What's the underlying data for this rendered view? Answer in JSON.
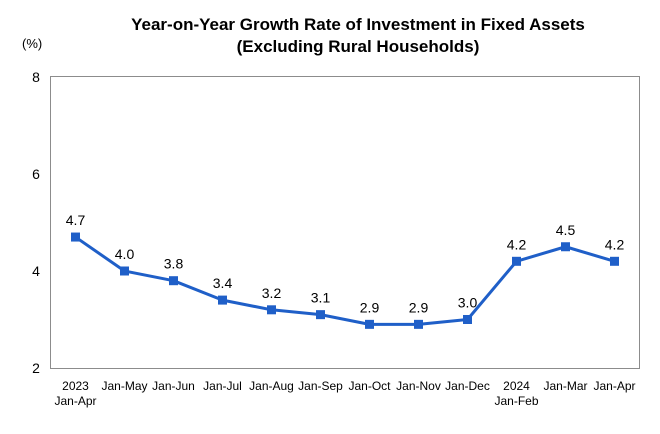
{
  "chart_data": {
    "type": "line",
    "title_lines": [
      "Year-on-Year Growth Rate of Investment in Fixed Assets",
      "(Excluding Rural Households)"
    ],
    "unit": "(%)",
    "xlabel": "",
    "ylabel": "",
    "ylim": [
      2,
      8
    ],
    "yticks": [
      "2",
      "4",
      "6",
      "8"
    ],
    "ytick_values": [
      2,
      4,
      6,
      8
    ],
    "categories": [
      [
        "2023",
        "Jan-Apr"
      ],
      [
        "Jan-May"
      ],
      [
        "Jan-Jun"
      ],
      [
        "Jan-Jul"
      ],
      [
        "Jan-Aug"
      ],
      [
        "Jan-Sep"
      ],
      [
        "Jan-Oct"
      ],
      [
        "Jan-Nov"
      ],
      [
        "Jan-Dec"
      ],
      [
        "2024",
        "Jan-Feb"
      ],
      [
        "Jan-Mar"
      ],
      [
        "Jan-Apr"
      ]
    ],
    "series": [
      {
        "values": [
          4.7,
          4.0,
          3.8,
          3.4,
          3.2,
          3.1,
          2.9,
          2.9,
          3.0,
          4.2,
          4.5,
          4.2
        ],
        "labels": [
          "4.7",
          "4.0",
          "3.8",
          "3.4",
          "3.2",
          "3.1",
          "2.9",
          "2.9",
          "3.0",
          "4.2",
          "4.5",
          "4.2"
        ],
        "color": "#1f5fc8",
        "marker": "square"
      }
    ],
    "grid": false,
    "legend": "none"
  }
}
